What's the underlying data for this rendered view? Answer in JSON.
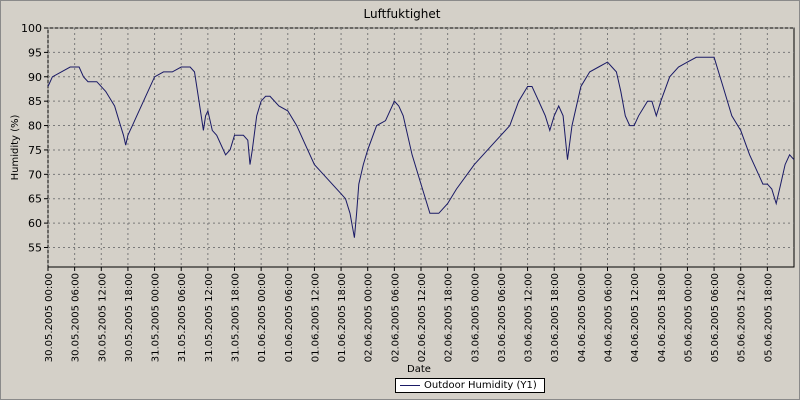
{
  "chart_data": {
    "type": "line",
    "title": "Luftfuktighet",
    "xlabel": "Date",
    "ylabel": "Humidity (%)",
    "ylim": [
      51,
      100
    ],
    "yticks": [
      55,
      60,
      65,
      70,
      75,
      80,
      85,
      90,
      95,
      100
    ],
    "xlim_hours": [
      0,
      168
    ],
    "xticks": [
      "30.05.2005 00:00",
      "30.05.2005 06:00",
      "30.05.2005 12:00",
      "30.05.2005 18:00",
      "31.05.2005 00:00",
      "31.05.2005 06:00",
      "31.05.2005 12:00",
      "31.05.2005 18:00",
      "01.06.2005 00:00",
      "01.06.2005 06:00",
      "01.06.2005 12:00",
      "01.06.2005 18:00",
      "02.06.2005 00:00",
      "02.06.2005 06:00",
      "02.06.2005 12:00",
      "02.06.2005 18:00",
      "03.06.2005 00:00",
      "03.06.2005 06:00",
      "03.06.2005 12:00",
      "03.06.2005 18:00",
      "04.06.2005 00:00",
      "04.06.2005 06:00",
      "04.06.2005 12:00",
      "04.06.2005 18:00",
      "05.06.2005 00:00",
      "05.06.2005 06:00",
      "05.06.2005 12:00",
      "05.06.2005 18:00"
    ],
    "grid": true,
    "legend_position": "bottom",
    "series": [
      {
        "name": "Outdoor Humidity (Y1)",
        "color": "#1a1a66",
        "x": [
          "30.05.2005 00:00",
          "30.05.2005 01:00",
          "30.05.2005 03:00",
          "30.05.2005 05:00",
          "30.05.2005 07:00",
          "30.05.2005 08:00",
          "30.05.2005 09:00",
          "30.05.2005 11:00",
          "30.05.2005 13:00",
          "30.05.2005 15:00",
          "30.05.2005 16:00",
          "30.05.2005 17:00",
          "30.05.2005 17:30",
          "30.05.2005 18:00",
          "30.05.2005 18:30",
          "30.05.2005 19:00",
          "30.05.2005 20:00",
          "30.05.2005 22:00",
          "31.05.2005 00:00",
          "31.05.2005 02:00",
          "31.05.2005 04:00",
          "31.05.2005 06:00",
          "31.05.2005 08:00",
          "31.05.2005 09:00",
          "31.05.2005 10:00",
          "31.05.2005 11:00",
          "31.05.2005 11:30",
          "31.05.2005 12:00",
          "31.05.2005 12:30",
          "31.05.2005 13:00",
          "31.05.2005 14:00",
          "31.05.2005 16:00",
          "31.05.2005 17:00",
          "31.05.2005 18:00",
          "31.05.2005 20:00",
          "31.05.2005 21:00",
          "31.05.2005 21:30",
          "31.05.2005 22:00",
          "31.05.2005 23:00",
          "01.06.2005 00:00",
          "01.06.2005 01:00",
          "01.06.2005 02:00",
          "01.06.2005 04:00",
          "01.06.2005 06:00",
          "01.06.2005 08:00",
          "01.06.2005 10:00",
          "01.06.2005 12:00",
          "01.06.2005 14:00",
          "01.06.2005 16:00",
          "01.06.2005 18:00",
          "01.06.2005 19:00",
          "01.06.2005 20:00",
          "01.06.2005 21:00",
          "01.06.2005 21:30",
          "01.06.2005 22:00",
          "01.06.2005 23:00",
          "02.06.2005 00:00",
          "02.06.2005 02:00",
          "02.06.2005 04:00",
          "02.06.2005 06:00",
          "02.06.2005 07:00",
          "02.06.2005 08:00",
          "02.06.2005 10:00",
          "02.06.2005 12:00",
          "02.06.2005 14:00",
          "02.06.2005 15:00",
          "02.06.2005 16:00",
          "02.06.2005 18:00",
          "02.06.2005 20:00",
          "03.06.2005 00:00",
          "03.06.2005 04:00",
          "03.06.2005 08:00",
          "03.06.2005 10:00",
          "03.06.2005 12:00",
          "03.06.2005 13:00",
          "03.06.2005 14:00",
          "03.06.2005 15:00",
          "03.06.2005 16:00",
          "03.06.2005 17:00",
          "03.06.2005 18:00",
          "03.06.2005 19:00",
          "03.06.2005 20:00",
          "03.06.2005 21:00",
          "03.06.2005 22:00",
          "04.06.2005 00:00",
          "04.06.2005 02:00",
          "04.06.2005 04:00",
          "04.06.2005 06:00",
          "04.06.2005 07:00",
          "04.06.2005 08:00",
          "04.06.2005 09:00",
          "04.06.2005 10:00",
          "04.06.2005 11:00",
          "04.06.2005 12:00",
          "04.06.2005 13:00",
          "04.06.2005 15:00",
          "04.06.2005 16:00",
          "04.06.2005 17:00",
          "04.06.2005 18:00",
          "04.06.2005 20:00",
          "04.06.2005 22:00",
          "05.06.2005 00:00",
          "05.06.2005 02:00",
          "05.06.2005 04:00",
          "05.06.2005 06:00",
          "05.06.2005 08:00",
          "05.06.2005 10:00",
          "05.06.2005 12:00",
          "05.06.2005 14:00",
          "05.06.2005 16:00",
          "05.06.2005 17:00",
          "05.06.2005 18:00",
          "05.06.2005 19:00",
          "05.06.2005 20:00",
          "05.06.2005 21:00",
          "05.06.2005 22:00",
          "05.06.2005 23:00",
          "06.06.2005 00:00"
        ],
        "values": [
          88,
          90,
          91,
          92,
          92,
          90,
          89,
          89,
          87,
          84,
          81,
          78,
          76,
          78,
          79,
          80,
          82,
          86,
          90,
          91,
          91,
          92,
          92,
          91,
          85,
          79,
          82,
          83,
          81,
          79,
          78,
          74,
          75,
          78,
          78,
          77,
          72,
          75,
          82,
          85,
          86,
          86,
          84,
          83,
          80,
          76,
          72,
          70,
          68,
          66,
          65,
          62,
          57,
          62,
          68,
          72,
          75,
          80,
          81,
          85,
          84,
          82,
          74,
          68,
          62,
          62,
          62,
          64,
          67,
          72,
          76,
          80,
          85,
          88,
          88,
          86,
          84,
          82,
          79,
          82,
          84,
          82,
          73,
          80,
          88,
          91,
          92,
          93,
          92,
          91,
          87,
          82,
          80,
          80,
          82,
          85,
          85,
          82,
          85,
          90,
          92,
          93,
          94,
          94,
          94,
          88,
          82,
          79,
          74,
          70,
          68,
          68,
          67,
          64,
          68,
          72,
          74,
          73
        ]
      }
    ]
  }
}
